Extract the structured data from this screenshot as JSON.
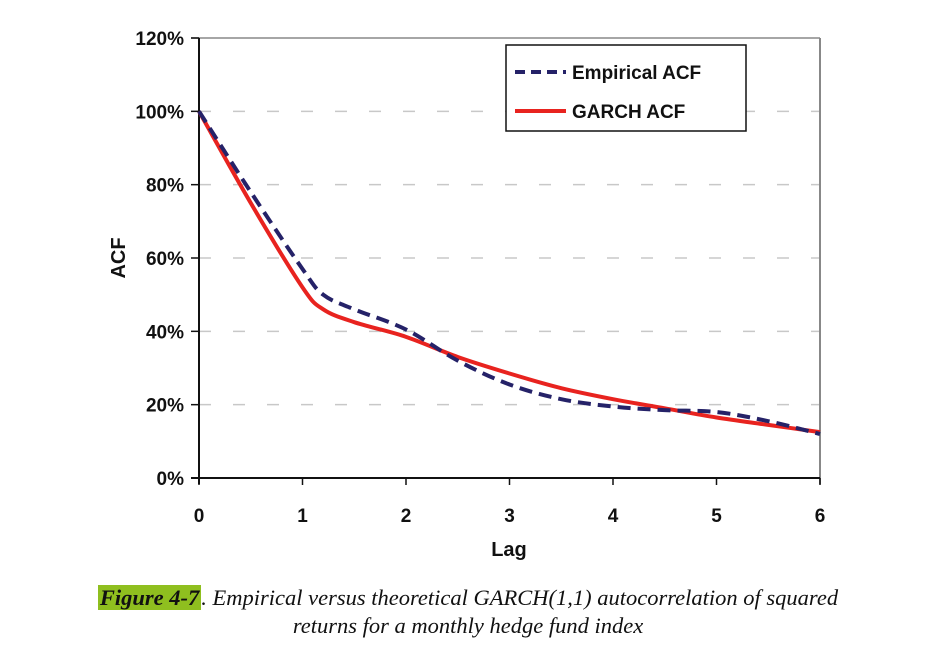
{
  "chart_data": {
    "type": "line",
    "title": "",
    "xlabel": "Lag",
    "ylabel": "ACF",
    "xlim": [
      0,
      6
    ],
    "ylim": [
      0,
      120
    ],
    "x_ticks": [
      "0",
      "1",
      "2",
      "3",
      "4",
      "5",
      "6"
    ],
    "y_ticks": [
      "0%",
      "20%",
      "40%",
      "60%",
      "80%",
      "100%",
      "120%"
    ],
    "grid": "horizontal dashed",
    "legend_position": "top-right",
    "series": [
      {
        "name": "Empirical ACF",
        "style": "dashed",
        "color": "#252268",
        "x": [
          0,
          0.5,
          1,
          1.2,
          1.5,
          2,
          2.5,
          3,
          3.5,
          4,
          4.5,
          5,
          5.5,
          6
        ],
        "values": [
          100,
          78,
          57,
          50,
          46,
          40.5,
          32,
          25.5,
          21.5,
          19.5,
          18.5,
          18,
          15.5,
          12
        ]
      },
      {
        "name": "GARCH ACF",
        "style": "solid",
        "color": "#e8231f",
        "x": [
          0,
          0.5,
          1,
          1.2,
          1.5,
          2,
          2.5,
          3,
          3.5,
          4,
          4.5,
          5,
          5.5,
          6
        ],
        "values": [
          100,
          75,
          52,
          46,
          42.5,
          38.5,
          33,
          28.5,
          24.5,
          21.5,
          19,
          16.5,
          14.5,
          12.5
        ]
      }
    ]
  },
  "caption": {
    "label": "Figure 4-7",
    "text": ".  Empirical versus theoretical GARCH(1,1) autocorrelation of squared",
    "text_line2": "returns for a monthly hedge fund index",
    "label_highlight_color": "#8fbf1f"
  }
}
